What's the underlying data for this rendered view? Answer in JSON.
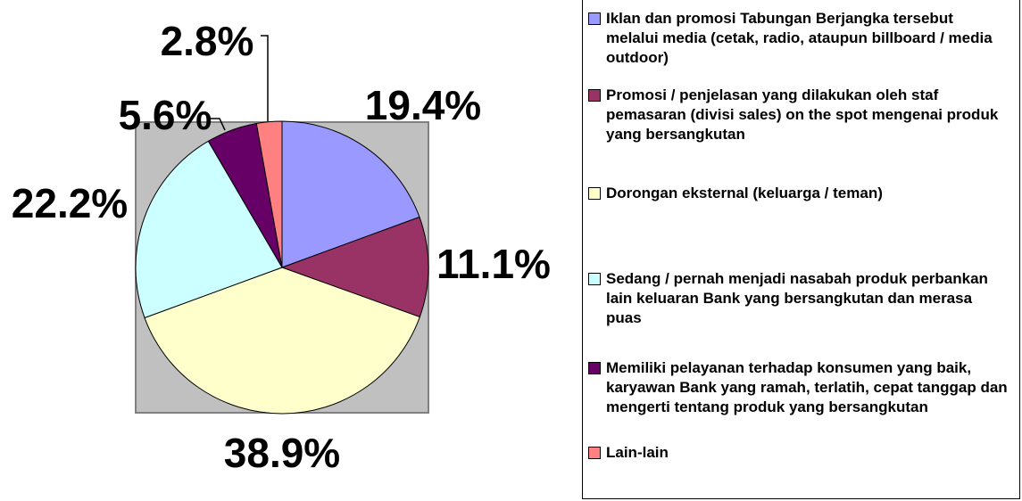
{
  "chart_data": {
    "type": "pie",
    "categories": [
      "Iklan dan promosi Tabungan Berjangka tersebut melalui media (cetak, radio, ataupun billboard / media outdoor)",
      "Promosi / penjelasan yang dilakukan oleh staf pemasaran (divisi sales) on the spot mengenai produk yang bersangkutan",
      "Dorongan eksternal (keluarga / teman)",
      "Sedang / pernah menjadi nasabah produk perbankan lain keluaran Bank yang bersangkutan dan merasa puas",
      "Memiliki pelayanan terhadap konsumen yang baik, karyawan Bank yang ramah, terlatih, cepat tanggap dan mengerti tentang produk yang bersangkutan",
      "Lain-lain"
    ],
    "values": [
      19.4,
      11.1,
      38.9,
      22.2,
      5.6,
      2.8
    ],
    "value_labels": [
      "19.4%",
      "11.1%",
      "38.9%",
      "22.2%",
      "5.6%",
      "2.8%"
    ],
    "colors": [
      "#9999ff",
      "#993366",
      "#ffffcc",
      "#ccffff",
      "#660066",
      "#ff8080"
    ]
  }
}
